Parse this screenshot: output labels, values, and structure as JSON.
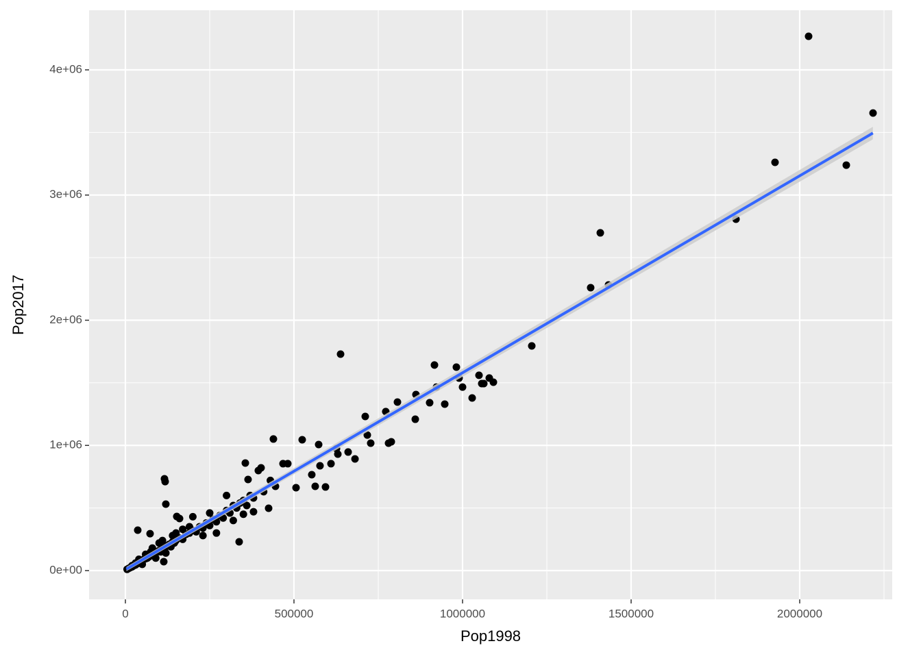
{
  "chart_data": {
    "type": "scatter",
    "x_label": "Pop1998",
    "y_label": "Pop2017",
    "xlim": [
      -107700,
      2274400
    ],
    "ylim": [
      -229800,
      4476000
    ],
    "xticks": [
      0,
      500000,
      1000000,
      1500000,
      2000000
    ],
    "yticks": [
      {
        "value": 0,
        "label": "0e+00"
      },
      {
        "value": 1000000,
        "label": "1e+06"
      },
      {
        "value": 2000000,
        "label": "2e+06"
      },
      {
        "value": 3000000,
        "label": "3e+06"
      },
      {
        "value": 4000000,
        "label": "4e+06"
      }
    ],
    "grid": true,
    "point_color": "#000000",
    "series": [
      {
        "name": "points",
        "color": "#000000",
        "x": [
          2026400,
          2217500,
          1926800,
          2138200,
          1811000,
          1408600,
          1380000,
          1432900,
          1205300,
          638200,
          916700,
          981700,
          989800,
          922700,
          1048800,
          1000000,
          1079300,
          1091500,
          1056900,
          1063000,
          1028500,
          947200,
          902400,
          861800,
          806900,
          859800,
          772300,
          711400,
          780500,
          788600,
          727600,
          717500,
          524400,
          439000,
          573200,
          626100,
          681000,
          660600,
          630100,
          593500,
          563000,
          609800,
          577200,
          552800,
          481700,
          467500,
          402400,
          394300,
          355700,
          445100,
          506100,
          424800,
          363800,
          337400,
          115900,
          117900,
          119900,
          36600,
          73200,
          152400,
          160600,
          113800,
          5000,
          10000,
          15000,
          20000,
          25000,
          30000,
          35000,
          40000,
          45000,
          50000,
          55000,
          60000,
          65000,
          70000,
          75000,
          80000,
          85000,
          90000,
          95000,
          100000,
          105000,
          110000,
          115000,
          120000,
          125000,
          130000,
          135000,
          140000,
          145000,
          150000,
          160000,
          170000,
          180000,
          190000,
          200000,
          210000,
          220000,
          230000,
          240000,
          250000,
          260000,
          270000,
          280000,
          290000,
          300000,
          310000,
          320000,
          330000,
          340000,
          350000,
          360000,
          370000,
          380000,
          60000,
          80000,
          100000,
          50000,
          90000,
          120000,
          150000,
          200000,
          250000,
          300000,
          350000,
          380000,
          410000,
          430000,
          320000,
          270000,
          230000,
          190000,
          170000,
          140000,
          110000,
          75000,
          40000,
          30000,
          20000
        ],
        "values": [
          4268000,
          3655000,
          3261000,
          3239000,
          2807000,
          2698000,
          2260000,
          2282000,
          1795000,
          1729000,
          1642000,
          1625000,
          1538000,
          1466000,
          1560000,
          1466000,
          1538000,
          1505000,
          1494000,
          1494000,
          1379000,
          1330000,
          1341000,
          1406000,
          1346000,
          1209000,
          1270000,
          1231000,
          1018000,
          1029000,
          1018000,
          1083000,
          1045000,
          1051000,
          1007000,
          974000,
          892000,
          947000,
          930000,
          668000,
          673000,
          854000,
          837000,
          766000,
          854000,
          854000,
          821000,
          799000,
          859000,
          673000,
          662000,
          498000,
          728000,
          230000,
          733000,
          711000,
          531000,
          323000,
          295000,
          432000,
          416000,
          71000,
          10000,
          18000,
          25000,
          30000,
          40000,
          45000,
          55000,
          60000,
          70000,
          80000,
          90000,
          95000,
          100000,
          110000,
          120000,
          130000,
          125000,
          140000,
          150000,
          160000,
          150000,
          180000,
          170000,
          190000,
          200000,
          210000,
          190000,
          230000,
          220000,
          240000,
          260000,
          250000,
          290000,
          300000,
          320000,
          310000,
          350000,
          340000,
          380000,
          360000,
          410000,
          390000,
          440000,
          420000,
          480000,
          460000,
          520000,
          500000,
          540000,
          560000,
          520000,
          600000,
          580000,
          130000,
          180000,
          220000,
          50000,
          100000,
          140000,
          300000,
          430000,
          460000,
          600000,
          450000,
          470000,
          630000,
          720000,
          400000,
          300000,
          280000,
          350000,
          330000,
          280000,
          240000,
          150000,
          90000,
          60000,
          40000
        ]
      }
    ],
    "trend": {
      "color": "#3366ff",
      "band_color": "#cccccc",
      "x": [
        3000,
        2217000
      ],
      "y": [
        12000,
        3495000
      ],
      "upper": [
        30000,
        3545000
      ],
      "lower": [
        -5000,
        3445000
      ]
    }
  }
}
